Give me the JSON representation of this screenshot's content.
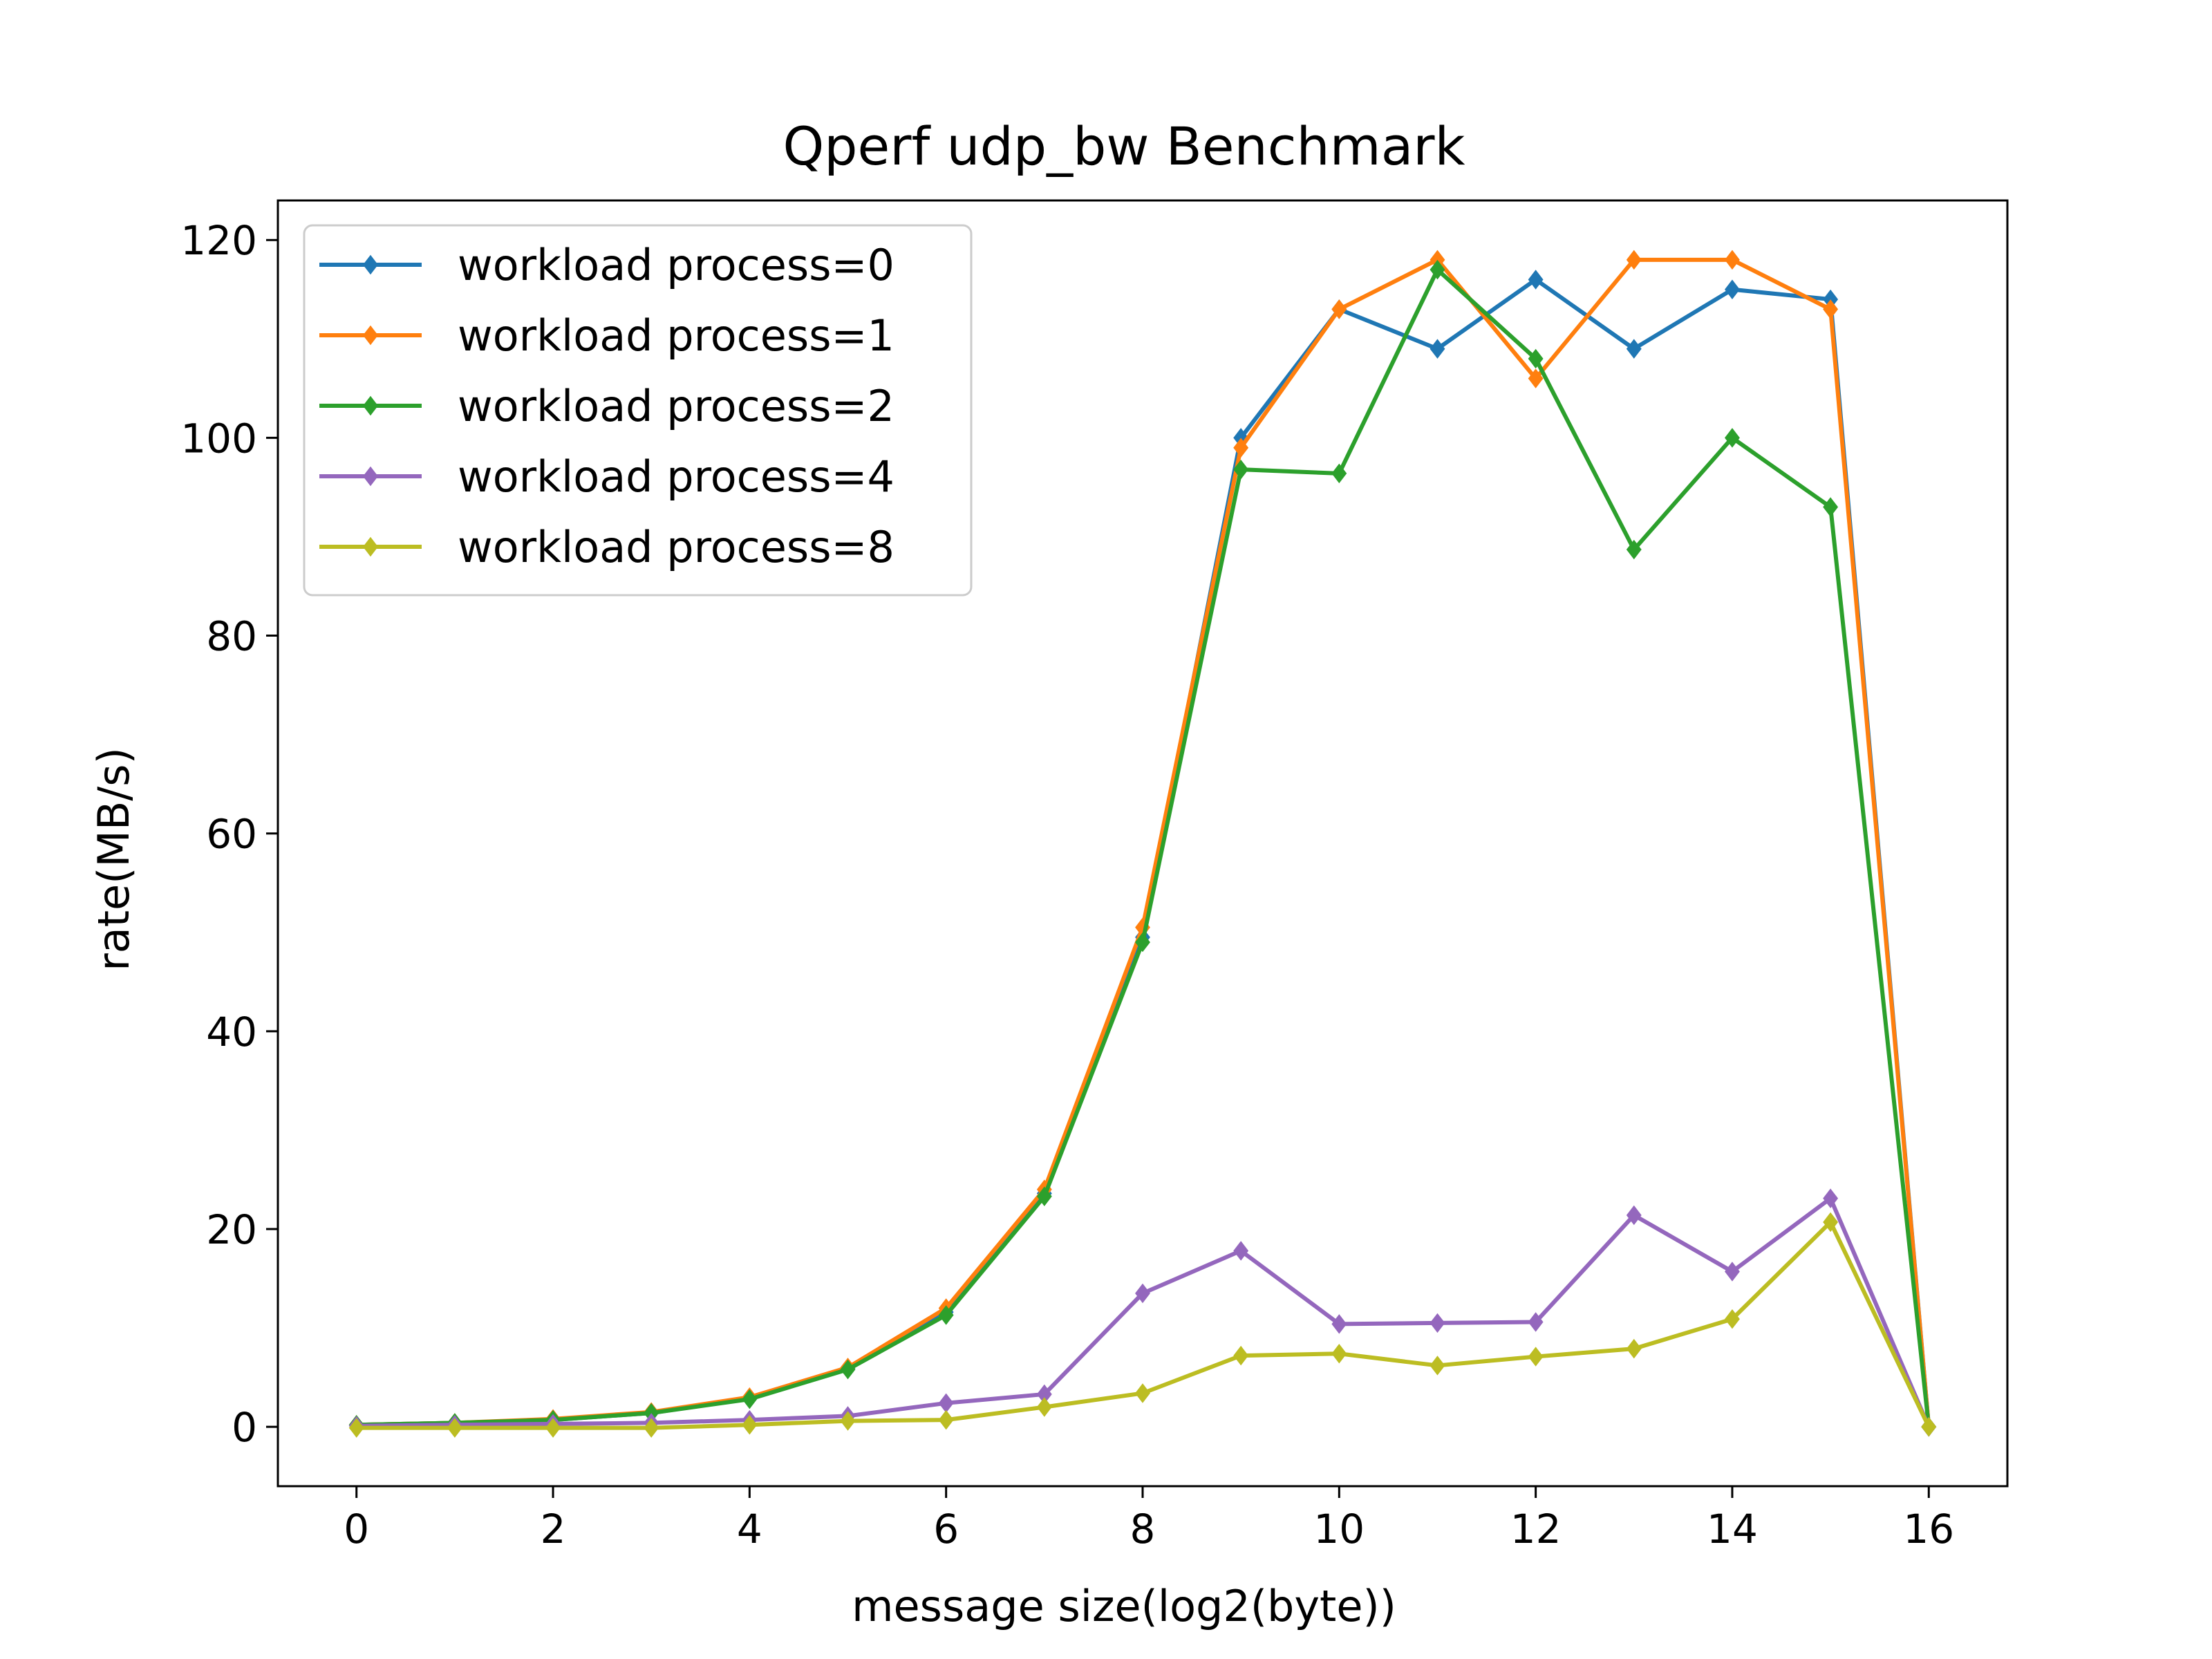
{
  "chart_data": {
    "type": "line",
    "title": "Qperf udp_bw Benchmark",
    "xlabel": "message size(log2(byte))",
    "ylabel": "rate(MB/s)",
    "xlim": [
      -0.8,
      16.8
    ],
    "ylim": [
      -6,
      124
    ],
    "xticks": [
      0,
      2,
      4,
      6,
      8,
      10,
      12,
      14,
      16
    ],
    "yticks": [
      0,
      20,
      40,
      60,
      80,
      100,
      120
    ],
    "grid": false,
    "legend_position": "top-left",
    "marker": "diamond",
    "x": [
      0,
      1,
      2,
      3,
      4,
      5,
      6,
      7,
      8,
      9,
      10,
      11,
      12,
      13,
      14,
      15,
      16
    ],
    "series": [
      {
        "name": "workload process=0",
        "color": "#1f77b4",
        "values": [
          0.2,
          0.4,
          0.7,
          1.4,
          2.9,
          5.9,
          11.6,
          23.6,
          49.5,
          100,
          113,
          109,
          116,
          109,
          115,
          114,
          0
        ]
      },
      {
        "name": "workload process=1",
        "color": "#ff7f0e",
        "values": [
          0.2,
          0.4,
          0.8,
          1.5,
          3.0,
          6.0,
          12.0,
          24.0,
          50.5,
          99,
          113,
          118,
          106,
          118,
          118,
          113,
          0
        ]
      },
      {
        "name": "workload process=2",
        "color": "#2ca02c",
        "values": [
          0.2,
          0.4,
          0.7,
          1.4,
          2.8,
          5.8,
          11.3,
          23.3,
          49.0,
          96.8,
          96.4,
          117,
          108,
          88.7,
          100,
          93,
          0
        ]
      },
      {
        "name": "workload process=4",
        "color": "#9467bd",
        "values": [
          0.1,
          0.2,
          0.3,
          0.4,
          0.7,
          1.1,
          2.4,
          3.3,
          13.5,
          17.8,
          10.4,
          10.5,
          10.6,
          21.4,
          15.7,
          23.1,
          0
        ]
      },
      {
        "name": "workload process=8",
        "color": "#bcbd22",
        "values": [
          -0.1,
          -0.1,
          -0.1,
          -0.1,
          0.2,
          0.6,
          0.7,
          2.0,
          3.4,
          7.2,
          7.4,
          6.2,
          7.1,
          7.9,
          10.9,
          20.7,
          0
        ]
      }
    ]
  }
}
